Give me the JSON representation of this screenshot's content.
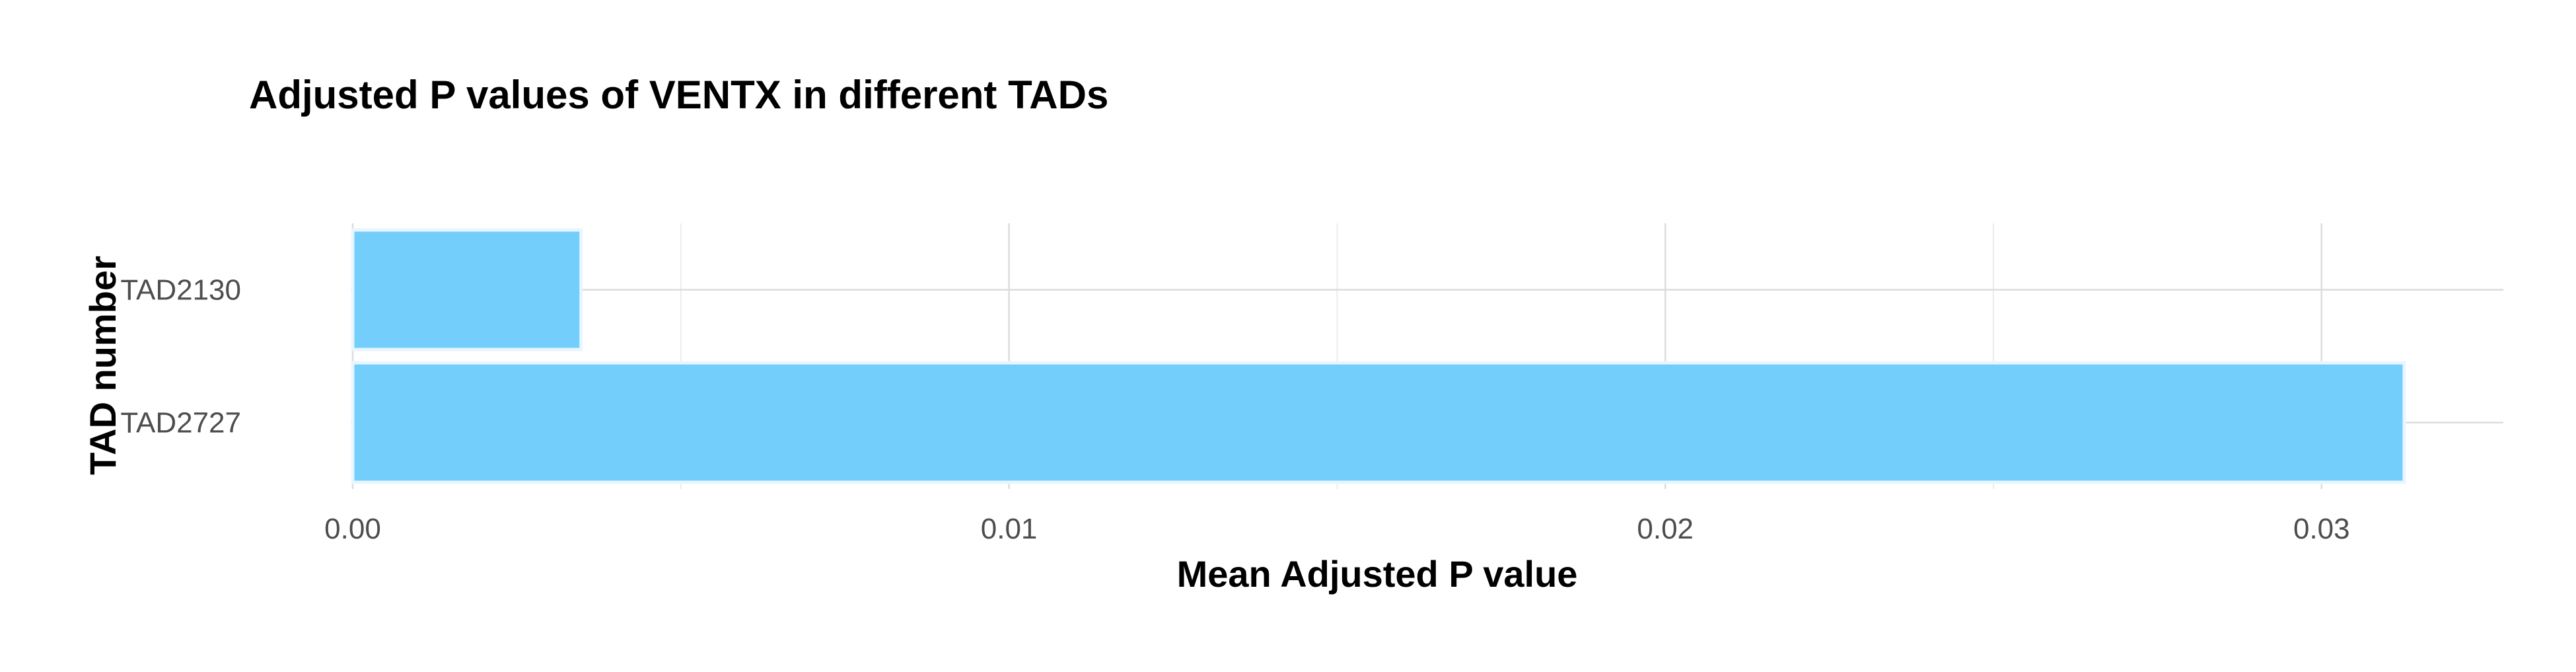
{
  "chart_data": {
    "type": "bar",
    "orientation": "horizontal",
    "title": "Adjusted P values of VENTX in different TADs",
    "xlabel": "Mean Adjusted P value",
    "ylabel": "TAD number",
    "categories": [
      "TAD2130",
      "TAD2727"
    ],
    "values": [
      0.00348,
      0.03126
    ],
    "xlim": [
      0.0,
      0.0313
    ],
    "xticks": [
      0.0,
      0.01,
      0.02,
      0.03
    ],
    "xtick_labels": [
      "0.00",
      "0.01",
      "0.02",
      "0.03"
    ],
    "grid": true,
    "legend": "none",
    "colors": {
      "bar": "#74cefb",
      "bar_outline": "#e9f6ff"
    }
  }
}
